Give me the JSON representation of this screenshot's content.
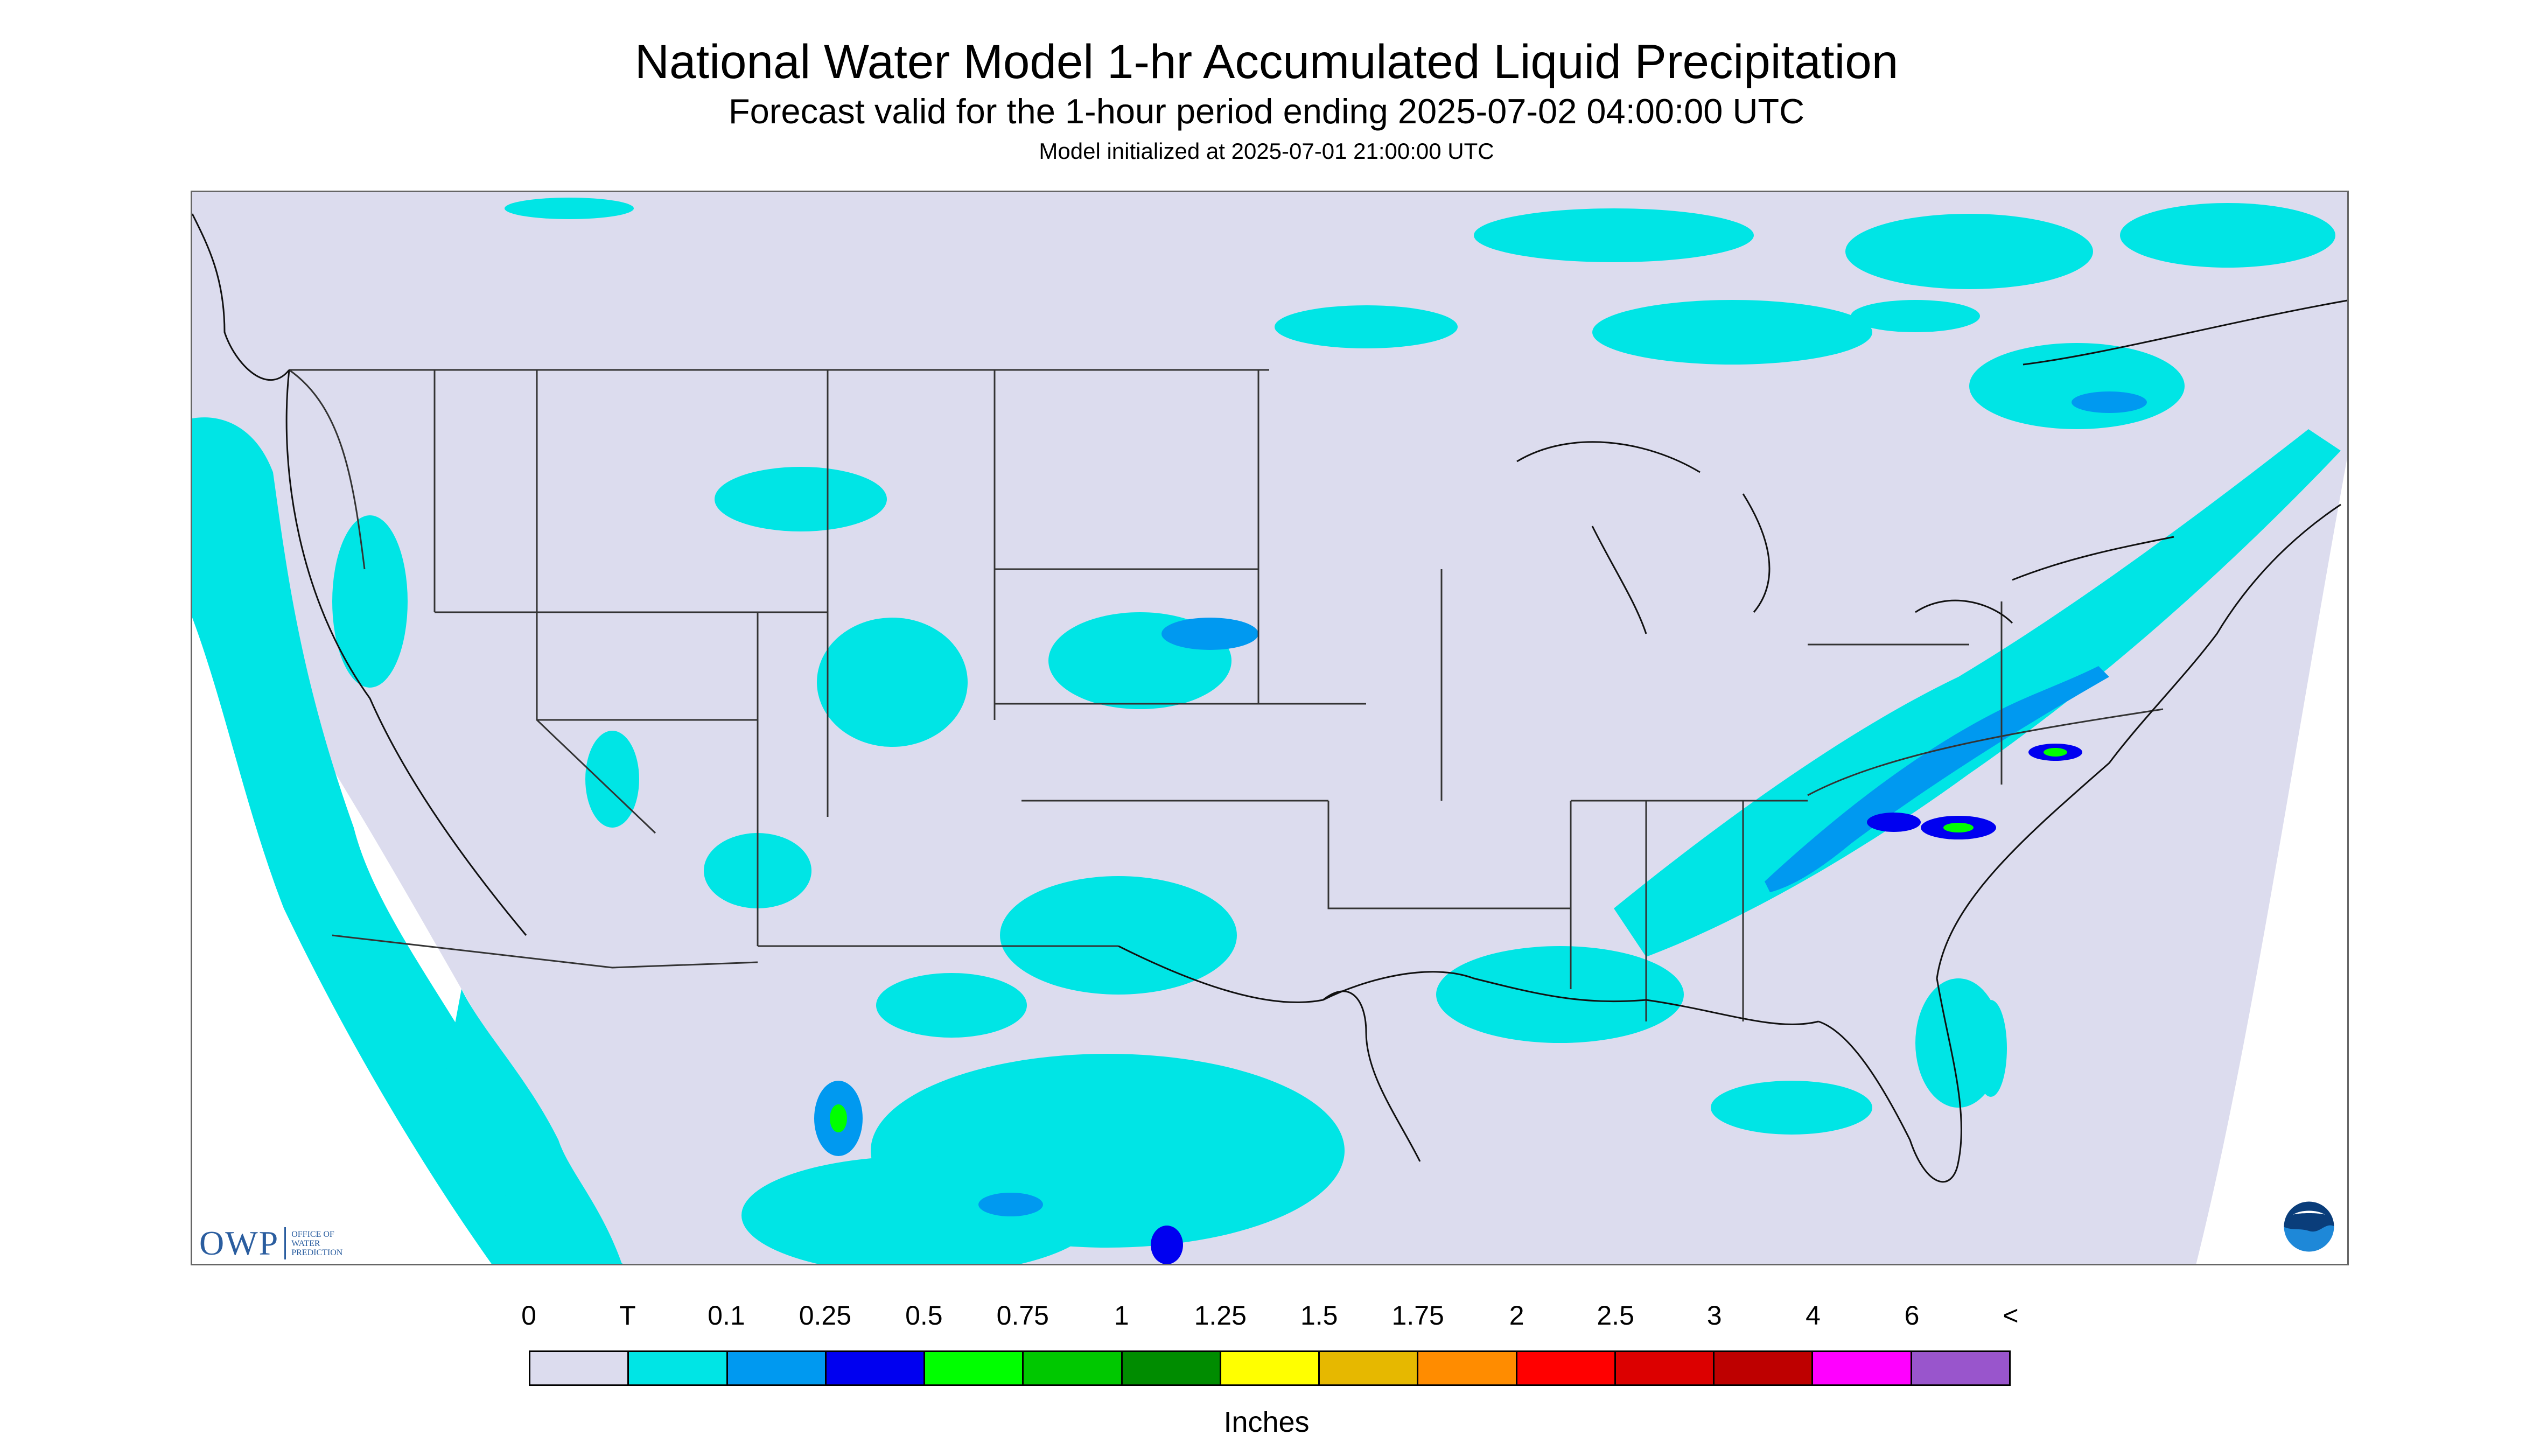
{
  "header": {
    "title": "National Water Model 1-hr Accumulated Liquid Precipitation",
    "subtitle": "Forecast valid for the 1-hour period ending 2025-07-02 04:00:00 UTC",
    "init": "Model initialized at 2025-07-01 21:00:00 UTC"
  },
  "logos": {
    "owp_letters": "OWP",
    "owp_line1": "Office of",
    "owp_line2": "Water",
    "owp_line3": "Prediction",
    "noaa": "NOAA"
  },
  "legend": {
    "labels": [
      "0",
      "T",
      "0.1",
      "0.25",
      "0.5",
      "0.75",
      "1",
      "1.25",
      "1.5",
      "1.75",
      "2",
      "2.5",
      "3",
      "4",
      "6",
      "<"
    ],
    "colors": [
      "#dcdcee",
      "#00e5e5",
      "#0099f0",
      "#0000f0",
      "#00ff00",
      "#00c800",
      "#008c00",
      "#ffff00",
      "#e6b800",
      "#ff8c00",
      "#ff0000",
      "#dc0000",
      "#be0000",
      "#ff00ff",
      "#9955cc"
    ],
    "units": "Inches"
  },
  "colors": {
    "no_data": "#ffffff",
    "domain_fill": "#dcdcee",
    "trace": "#00e5e5",
    "light": "#0099f0",
    "moderate": "#0000f0",
    "heavy": "#00ff00",
    "borders": "#333333"
  }
}
